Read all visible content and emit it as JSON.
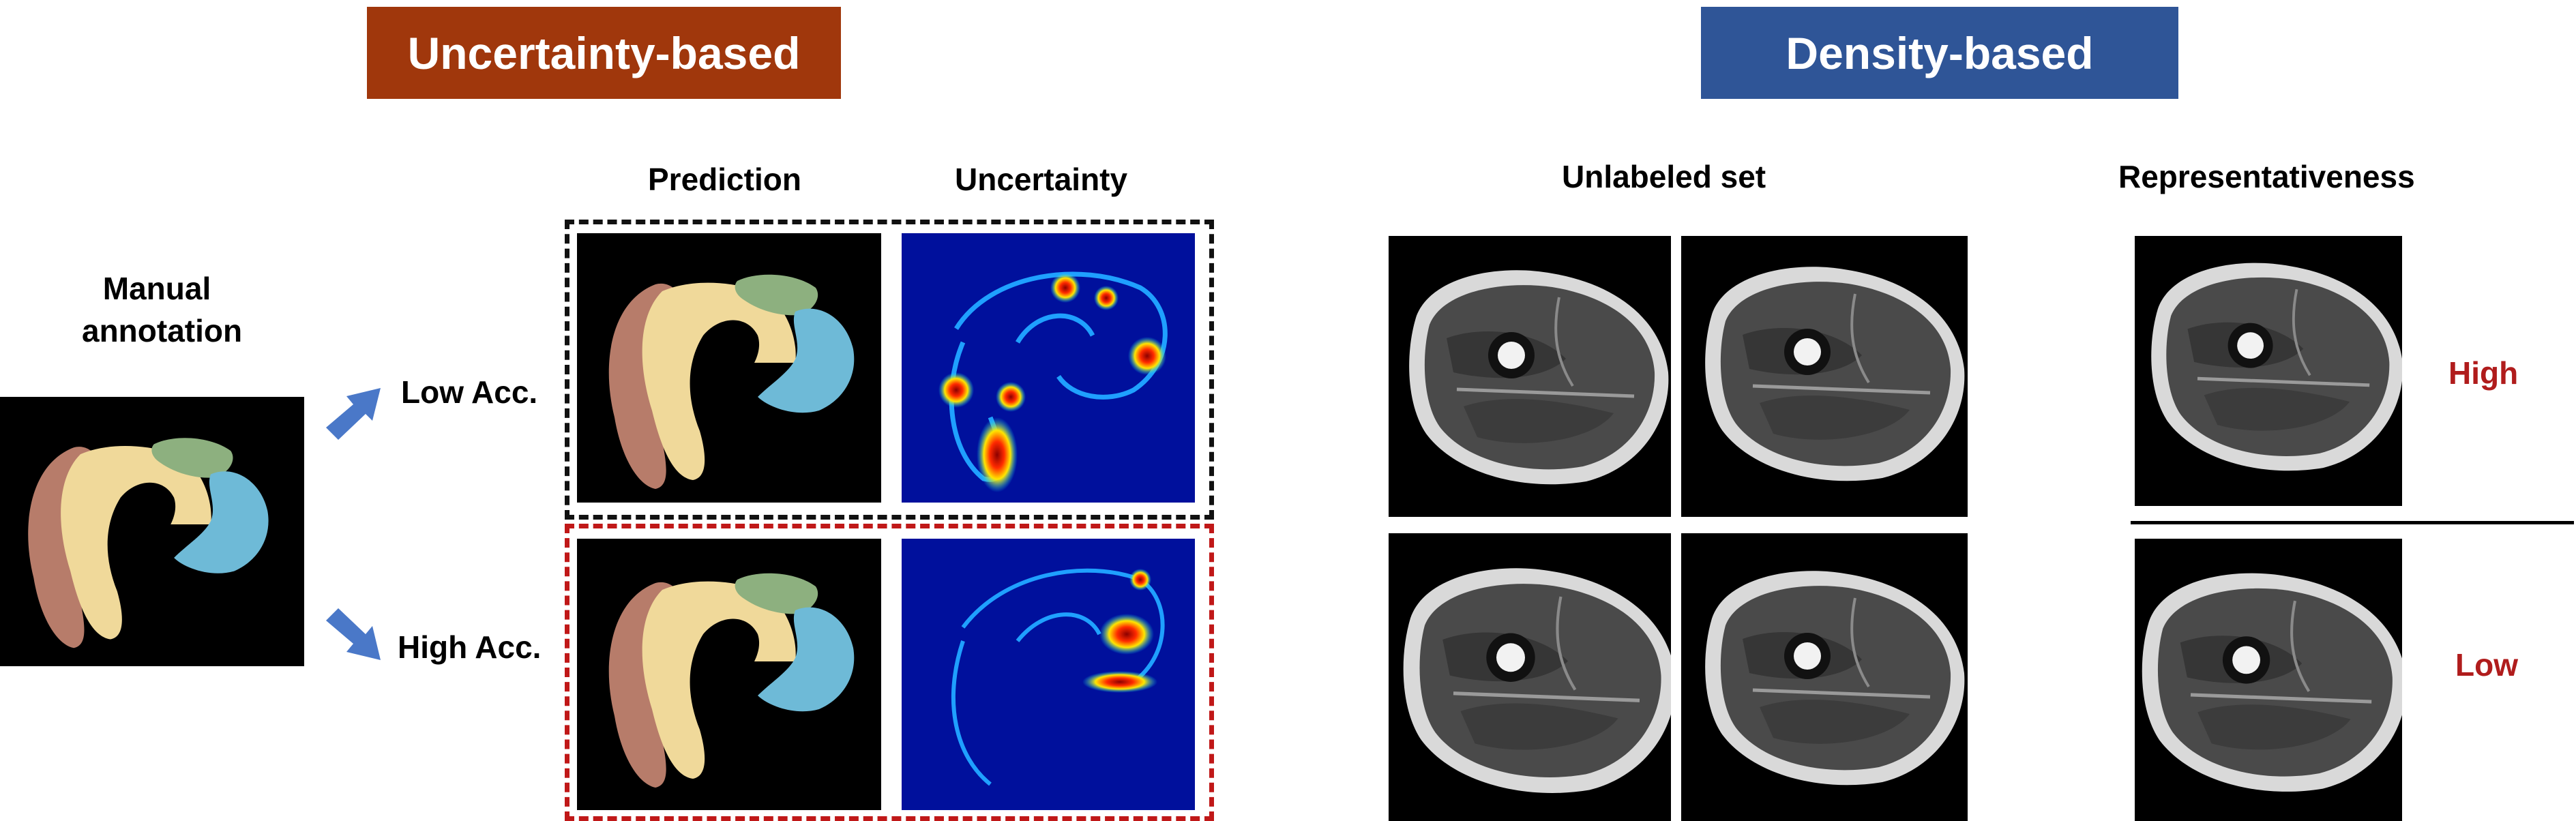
{
  "uncertainty": {
    "banner": "Uncertainty-based",
    "banner_color": "#a0370c",
    "manual_label_line1": "Manual",
    "manual_label_line2": "annotation",
    "prediction_label": "Prediction",
    "uncertainty_label": "Uncertainty",
    "low_label": "Low Acc.",
    "high_label": "High Acc.",
    "low_box_color": "#111111",
    "high_box_color": "#c01818"
  },
  "density": {
    "banner": "Density-based",
    "banner_color": "#2f5597",
    "unlabeled_label": "Unlabeled set",
    "representativeness_label": "Representativeness",
    "high_label": "High",
    "low_label": "Low"
  },
  "colors": {
    "seg_brown": "#b77c6a",
    "seg_yellow": "#f0d99a",
    "seg_blue": "#6ebad7",
    "seg_green": "#8db07f",
    "jet_background": "#00109c",
    "arrow": "#4a78c8"
  }
}
